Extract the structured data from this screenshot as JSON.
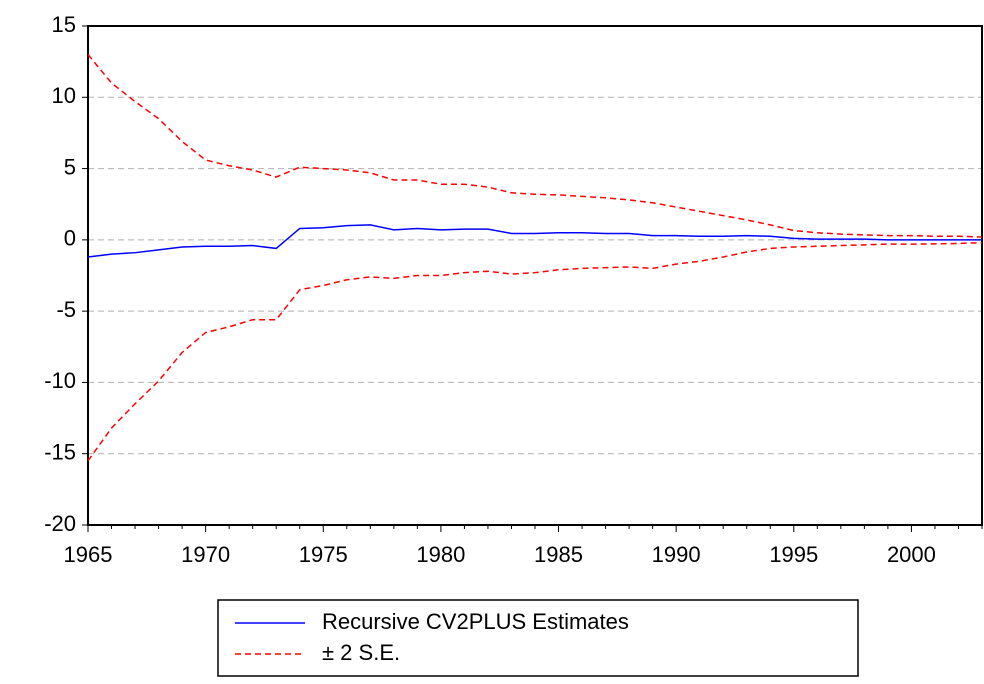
{
  "chart_data": {
    "type": "line",
    "x": [
      1965,
      1966,
      1967,
      1968,
      1969,
      1970,
      1971,
      1972,
      1973,
      1974,
      1975,
      1976,
      1977,
      1978,
      1979,
      1980,
      1981,
      1982,
      1983,
      1984,
      1985,
      1986,
      1987,
      1988,
      1989,
      1990,
      1991,
      1992,
      1993,
      1994,
      1995,
      1996,
      1997,
      1998,
      1999,
      2000,
      2001,
      2002,
      2003
    ],
    "series": [
      {
        "name": "Recursive CV2PLUS Estimates",
        "color": "#0000ff",
        "line_style": "solid",
        "values": [
          -1.2,
          -1.0,
          -0.9,
          -0.7,
          -0.5,
          -0.45,
          -0.45,
          -0.4,
          -0.6,
          0.8,
          0.85,
          1.0,
          1.05,
          0.7,
          0.8,
          0.7,
          0.75,
          0.75,
          0.45,
          0.45,
          0.5,
          0.5,
          0.45,
          0.45,
          0.3,
          0.3,
          0.25,
          0.25,
          0.3,
          0.25,
          0.1,
          0.05,
          0.05,
          0.05,
          0.0,
          0.0,
          0.0,
          0.0,
          0.0
        ]
      },
      {
        "name": "± 2 S.E.",
        "color": "#ff0000",
        "line_style": "dashed",
        "values": [
          13.0,
          11.0,
          9.7,
          8.5,
          6.9,
          5.6,
          5.2,
          4.9,
          4.4,
          5.1,
          5.0,
          4.9,
          4.7,
          4.2,
          4.2,
          3.9,
          3.9,
          3.7,
          3.3,
          3.2,
          3.15,
          3.05,
          2.95,
          2.8,
          2.6,
          2.3,
          2.0,
          1.7,
          1.4,
          1.05,
          0.65,
          0.5,
          0.4,
          0.35,
          0.3,
          0.3,
          0.25,
          0.25,
          0.2
        ]
      },
      {
        "color": "#ff0000",
        "line_style": "dashed",
        "values": [
          -15.5,
          -13.2,
          -11.5,
          -9.9,
          -7.9,
          -6.5,
          -6.1,
          -5.6,
          -5.6,
          -3.5,
          -3.2,
          -2.8,
          -2.6,
          -2.7,
          -2.5,
          -2.5,
          -2.3,
          -2.2,
          -2.4,
          -2.3,
          -2.1,
          -2.0,
          -1.95,
          -1.9,
          -2.0,
          -1.7,
          -1.5,
          -1.2,
          -0.85,
          -0.6,
          -0.5,
          -0.45,
          -0.4,
          -0.35,
          -0.3,
          -0.3,
          -0.28,
          -0.25,
          -0.2
        ]
      }
    ],
    "xlim": [
      1965,
      2003
    ],
    "xticks": [
      1965,
      1970,
      1975,
      1980,
      1985,
      1990,
      1995,
      2000
    ],
    "ylim": [
      -20,
      15
    ],
    "yticks": [
      -20,
      -15,
      -10,
      -5,
      0,
      5,
      10,
      15
    ],
    "grid": true
  }
}
